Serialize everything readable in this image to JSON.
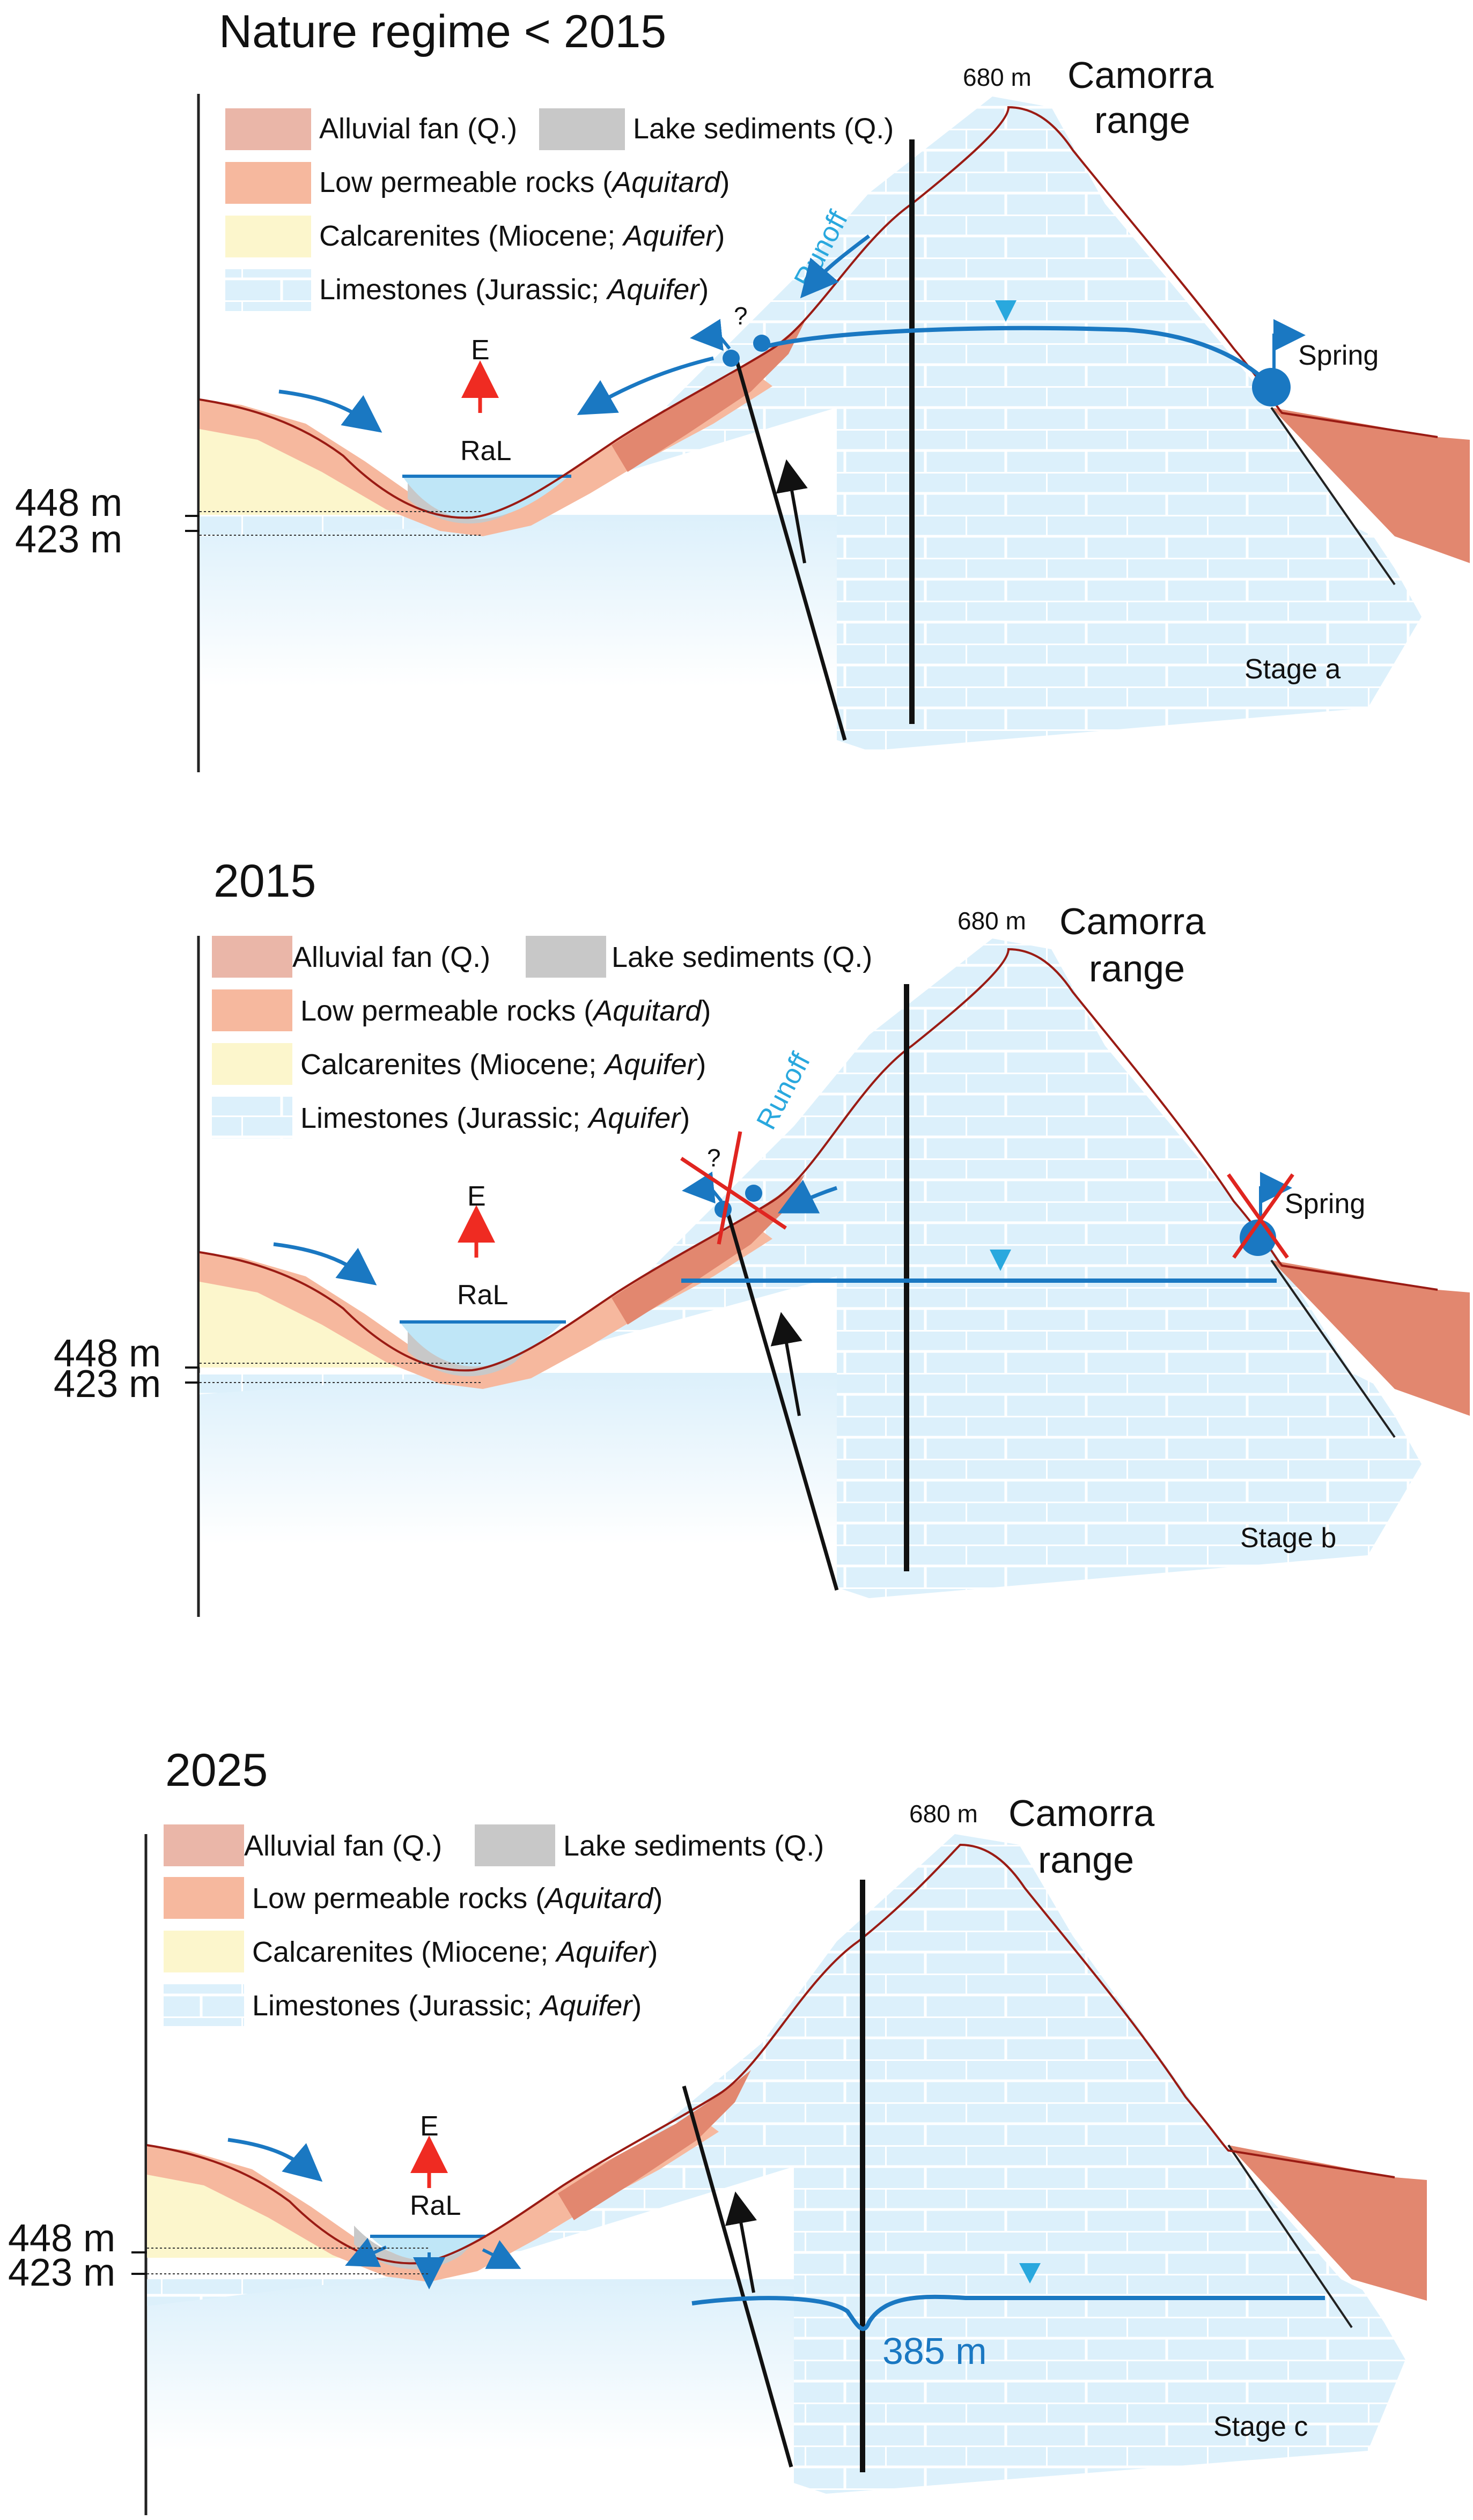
{
  "colors": {
    "alluvial_fan": "#eab6a8",
    "lake_sediments": "#c8c8c8",
    "aquitard": "#f6b89e",
    "aquitard_dark": "#e2876f",
    "calcarenites": "#fcf6cc",
    "limestones": "#dcf0fb",
    "water_line": "#1a78c2",
    "runoff": "#29a8de",
    "evaporation": "#ef2b22",
    "cross_out": "#e02520"
  },
  "icons": [
    "arrow-icon",
    "water-table-triangle-icon",
    "spring-icon",
    "cross-out-icon"
  ],
  "legend": {
    "alluvial_fan": "Alluvial fan (Q.)",
    "lake_sediments": "Lake sediments (Q.)",
    "low_permeable_prefix": "Low permeable rocks (",
    "low_permeable_em": "Aquitard",
    "calcarenites_prefix": "Calcarenites (Miocene; ",
    "limestones_prefix": "Limestones (Jurassic; ",
    "aquifer_em": "Aquifer",
    "close_paren": ")"
  },
  "common": {
    "peak_elevation": "680 m",
    "range_line1": "Camorra",
    "range_line2": "range",
    "evaporation": "E",
    "lake": "RaL",
    "level_upper": "448 m",
    "level_lower": "423 m",
    "runoff": "Runoff",
    "spring": "Spring",
    "uncertain": "?"
  },
  "panels": [
    {
      "title": "Nature regime    < 2015",
      "stage": "Stage a"
    },
    {
      "title": "2015",
      "stage": "Stage b"
    },
    {
      "title": "2025",
      "stage": "Stage c",
      "water_level": "385 m"
    }
  ]
}
